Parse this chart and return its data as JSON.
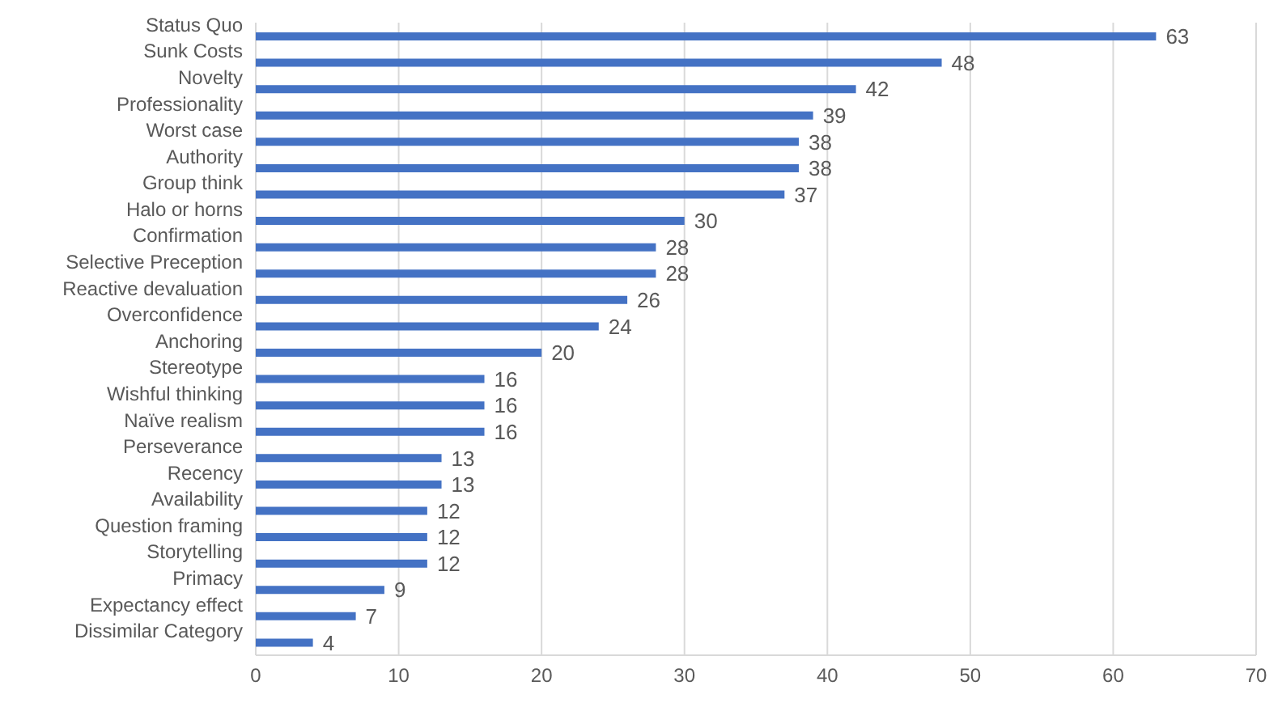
{
  "chart_data": {
    "type": "bar",
    "orientation": "horizontal",
    "categories": [
      "Status Quo",
      "Sunk Costs",
      "Novelty",
      "Professionality",
      "Worst case",
      "Authority",
      "Group think",
      "Halo or horns",
      "Confirmation",
      "Selective Preception",
      "Reactive devaluation",
      "Overconfidence",
      "Anchoring",
      "Stereotype",
      "Wishful thinking",
      "Naïve realism",
      "Perseverance",
      "Recency",
      "Availability",
      "Question framing",
      "Storytelling",
      "Primacy",
      "Expectancy effect",
      "Dissimilar Category"
    ],
    "values": [
      63,
      48,
      42,
      39,
      38,
      38,
      37,
      30,
      28,
      28,
      26,
      24,
      20,
      16,
      16,
      16,
      13,
      13,
      12,
      12,
      12,
      9,
      7,
      4
    ],
    "color": "#4472c4",
    "xlim": [
      0,
      70
    ],
    "xticks": [
      0,
      10,
      20,
      30,
      40,
      50,
      60,
      70
    ],
    "grid": "x",
    "data_labels": true,
    "legend": false
  }
}
